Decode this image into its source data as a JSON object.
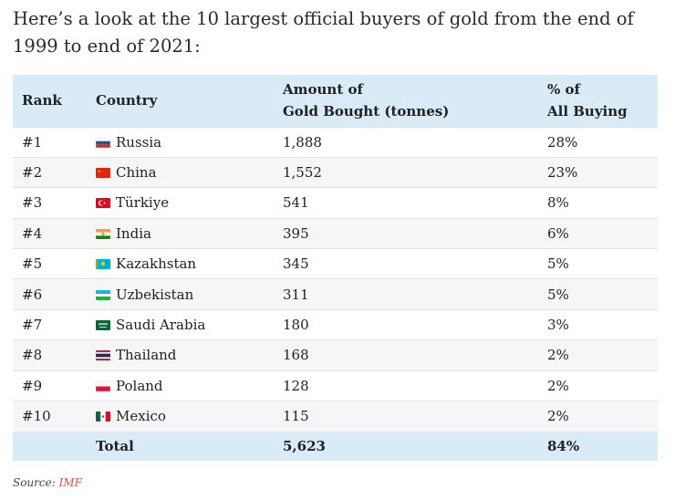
{
  "intro": "Here’s a look at the 10 largest official buyers of gold from the end of 1999 to end of 2021:",
  "table": {
    "headers": {
      "rank": "Rank",
      "country": "Country",
      "amount_line1": "Amount of",
      "amount_line2": "Gold Bought (tonnes)",
      "pct_line1": "% of",
      "pct_line2": "All Buying"
    },
    "rows": [
      {
        "rank": "#1",
        "country": "Russia",
        "flag": "russia-flag",
        "amount": "1,888",
        "pct": "28%"
      },
      {
        "rank": "#2",
        "country": "China",
        "flag": "china-flag",
        "amount": "1,552",
        "pct": "23%"
      },
      {
        "rank": "#3",
        "country": "Türkiye",
        "flag": "turkey-flag",
        "amount": "541",
        "pct": "8%"
      },
      {
        "rank": "#4",
        "country": "India",
        "flag": "india-flag",
        "amount": "395",
        "pct": "6%"
      },
      {
        "rank": "#5",
        "country": "Kazakhstan",
        "flag": "kazakhstan-flag",
        "amount": "345",
        "pct": "5%"
      },
      {
        "rank": "#6",
        "country": "Uzbekistan",
        "flag": "uzbekistan-flag",
        "amount": "311",
        "pct": "5%"
      },
      {
        "rank": "#7",
        "country": "Saudi Arabia",
        "flag": "saudi-arabia-flag",
        "amount": "180",
        "pct": "3%"
      },
      {
        "rank": "#8",
        "country": "Thailand",
        "flag": "thailand-flag",
        "amount": "168",
        "pct": "2%"
      },
      {
        "rank": "#9",
        "country": "Poland",
        "flag": "poland-flag",
        "amount": "128",
        "pct": "2%"
      },
      {
        "rank": "#10",
        "country": "Mexico",
        "flag": "mexico-flag",
        "amount": "115",
        "pct": "2%"
      }
    ],
    "total": {
      "label": "Total",
      "amount": "5,623",
      "pct": "84%"
    }
  },
  "source": {
    "label": "Source:",
    "link": "IMF"
  },
  "colors": {
    "header_bg": "#d8ebf6",
    "stripe_bg": "#f6f6f6",
    "link": "#e2504c"
  }
}
